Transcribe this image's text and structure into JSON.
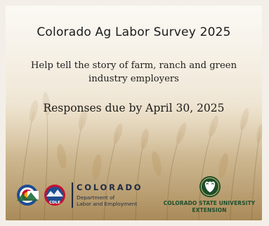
{
  "banner": {
    "title": "Colorado Ag Labor Survey 2025",
    "subtitle": "Help tell the story of farm, ranch and green industry employers",
    "deadline": "Responses due by April 30, 2025"
  },
  "logos": {
    "colorado": {
      "badge_text": "CDLE",
      "wordmark": "COLORADO",
      "dept_line1": "Department of",
      "dept_line2": "Labor and Employment"
    },
    "csu": {
      "name_line1": "COLORADO STATE UNIVERSITY",
      "name_line2": "EXTENSION"
    }
  },
  "colors": {
    "csu_green": "#1e4d2b",
    "co_navy": "#1f2a44",
    "co_red": "#c8102e",
    "co_gold": "#f2a900",
    "co_blue": "#1f4d8f"
  }
}
